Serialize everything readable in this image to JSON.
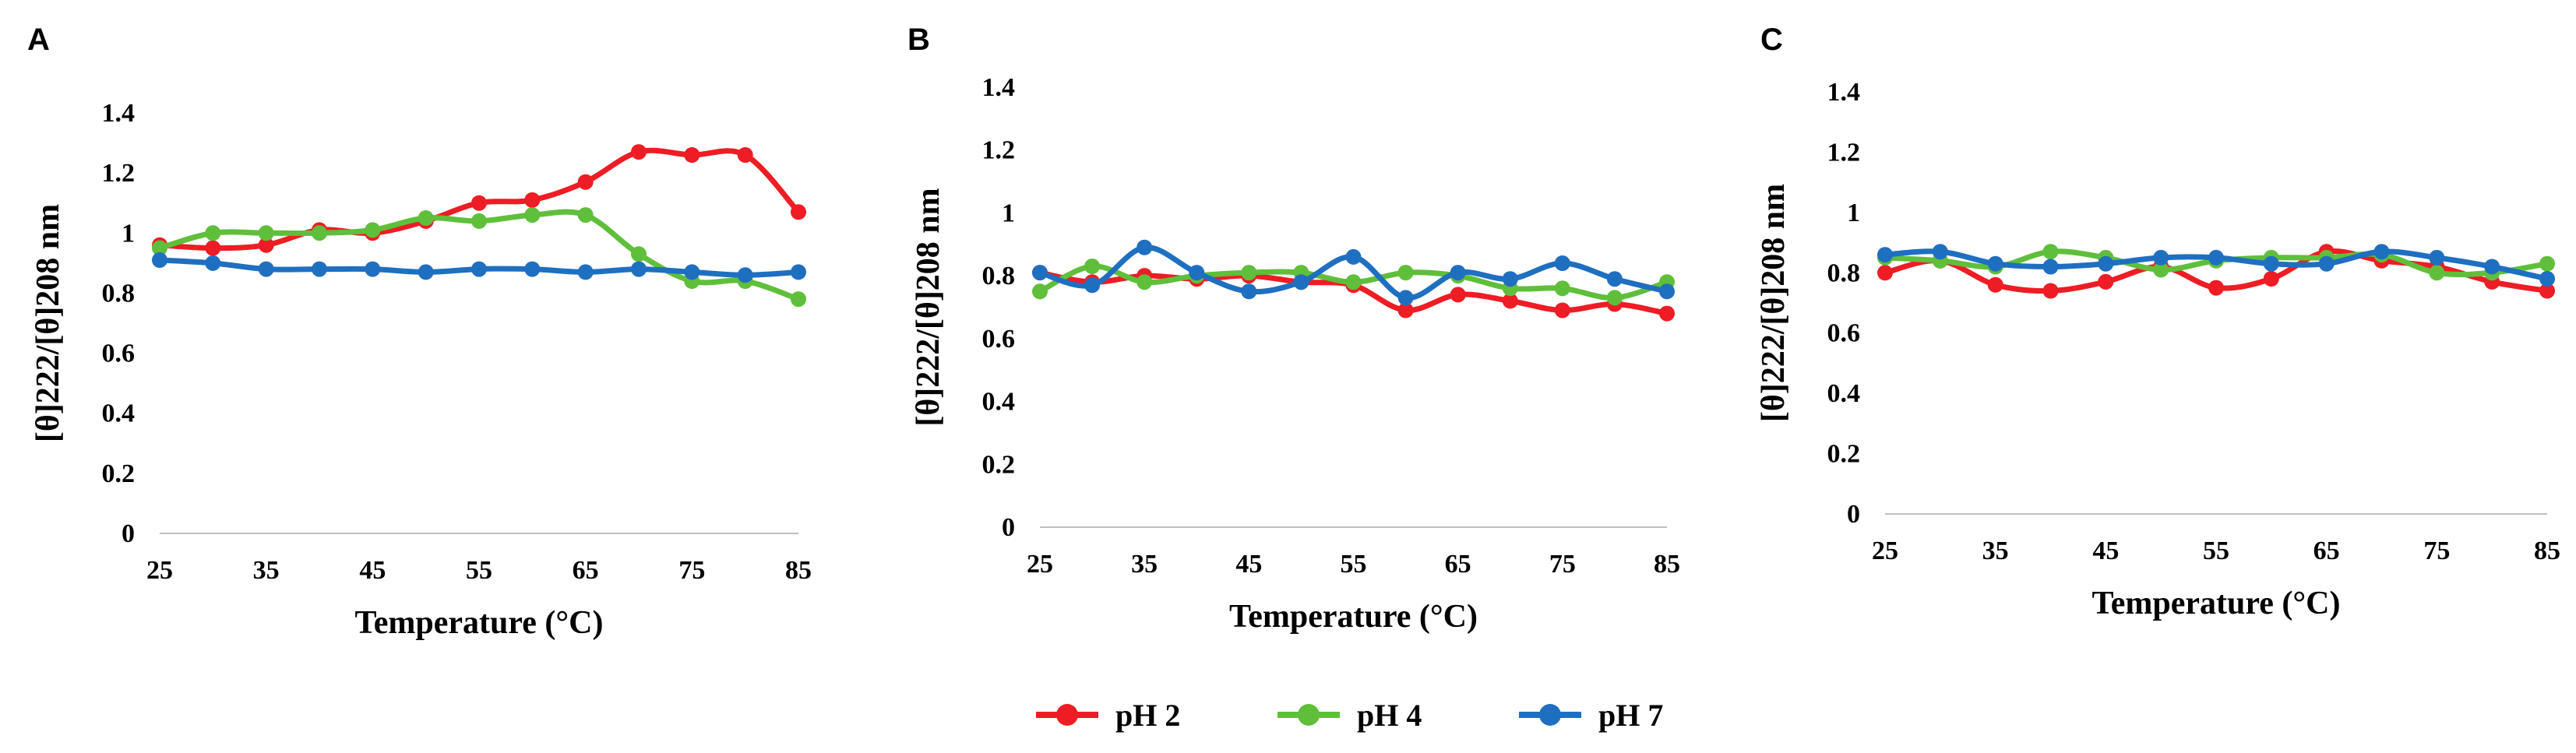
{
  "chart_data": [
    {
      "type": "line",
      "panel_label": "A",
      "xlabel": "Temperature (°C)",
      "ylabel": "[θ]222/[θ]208 nm",
      "x": [
        25,
        30,
        35,
        40,
        45,
        50,
        55,
        60,
        65,
        70,
        75,
        80,
        85
      ],
      "xticks": [
        "25",
        "35",
        "45",
        "55",
        "65",
        "75",
        "85"
      ],
      "yticks": [
        "0",
        "0.2",
        "0.4",
        "0.6",
        "0.8",
        "1",
        "1.2",
        "1.4"
      ],
      "xlim": [
        25,
        85
      ],
      "ylim": [
        0,
        1.4
      ],
      "grid": false,
      "series": [
        {
          "name": "pH 2",
          "color": "#ee1c24",
          "values": [
            0.96,
            0.95,
            0.96,
            1.01,
            1.0,
            1.04,
            1.1,
            1.11,
            1.17,
            1.27,
            1.26,
            1.26,
            1.07
          ]
        },
        {
          "name": "pH 4",
          "color": "#5fbf3a",
          "values": [
            0.95,
            1.0,
            1.0,
            1.0,
            1.01,
            1.05,
            1.04,
            1.06,
            1.06,
            0.93,
            0.84,
            0.84,
            0.78
          ]
        },
        {
          "name": "pH 7",
          "color": "#1f6fc1",
          "values": [
            0.91,
            0.9,
            0.88,
            0.88,
            0.88,
            0.87,
            0.88,
            0.88,
            0.87,
            0.88,
            0.87,
            0.86,
            0.87
          ]
        }
      ]
    },
    {
      "type": "line",
      "panel_label": "B",
      "xlabel": "Temperature (°C)",
      "ylabel": "[θ]222/[θ]208 nm",
      "x": [
        25,
        30,
        35,
        40,
        45,
        50,
        55,
        60,
        65,
        70,
        75,
        80,
        85
      ],
      "xticks": [
        "25",
        "35",
        "45",
        "55",
        "65",
        "75",
        "85"
      ],
      "yticks": [
        "0",
        "0.2",
        "0.4",
        "0.6",
        "0.8",
        "1",
        "1.2",
        "1.4"
      ],
      "xlim": [
        25,
        85
      ],
      "ylim": [
        0,
        1.4
      ],
      "grid": false,
      "series": [
        {
          "name": "pH 2",
          "color": "#ee1c24",
          "values": [
            0.81,
            0.78,
            0.8,
            0.79,
            0.8,
            0.78,
            0.77,
            0.69,
            0.74,
            0.72,
            0.69,
            0.71,
            0.68
          ]
        },
        {
          "name": "pH 4",
          "color": "#5fbf3a",
          "values": [
            0.75,
            0.83,
            0.78,
            0.8,
            0.81,
            0.81,
            0.78,
            0.81,
            0.8,
            0.76,
            0.76,
            0.73,
            0.78
          ]
        },
        {
          "name": "pH 7",
          "color": "#1f6fc1",
          "values": [
            0.81,
            0.77,
            0.89,
            0.81,
            0.75,
            0.78,
            0.86,
            0.73,
            0.81,
            0.79,
            0.84,
            0.79,
            0.75
          ]
        }
      ]
    },
    {
      "type": "line",
      "panel_label": "C",
      "xlabel": "Temperature (°C)",
      "ylabel": "[θ]222/[θ]208 nm",
      "x": [
        25,
        30,
        35,
        40,
        45,
        50,
        55,
        60,
        65,
        70,
        75,
        80,
        85
      ],
      "xticks": [
        "25",
        "35",
        "45",
        "55",
        "65",
        "75",
        "85"
      ],
      "yticks": [
        "0",
        "0.2",
        "0.4",
        "0.6",
        "0.8",
        "1",
        "1.2",
        "1.4"
      ],
      "xlim": [
        25,
        85
      ],
      "ylim": [
        0,
        1.4
      ],
      "grid": false,
      "series": [
        {
          "name": "pH 2",
          "color": "#ee1c24",
          "values": [
            0.8,
            0.84,
            0.76,
            0.74,
            0.77,
            0.82,
            0.75,
            0.78,
            0.87,
            0.84,
            0.82,
            0.77,
            0.74
          ]
        },
        {
          "name": "pH 4",
          "color": "#5fbf3a",
          "values": [
            0.85,
            0.84,
            0.82,
            0.87,
            0.85,
            0.81,
            0.84,
            0.85,
            0.85,
            0.86,
            0.8,
            0.8,
            0.83
          ]
        },
        {
          "name": "pH 7",
          "color": "#1f6fc1",
          "values": [
            0.86,
            0.87,
            0.83,
            0.82,
            0.83,
            0.85,
            0.85,
            0.83,
            0.83,
            0.87,
            0.85,
            0.82,
            0.78
          ]
        }
      ]
    }
  ],
  "legend": [
    {
      "label": "pH 2",
      "color": "#ee1c24"
    },
    {
      "label": "pH 4",
      "color": "#5fbf3a"
    },
    {
      "label": "pH 7",
      "color": "#1f6fc1"
    }
  ]
}
